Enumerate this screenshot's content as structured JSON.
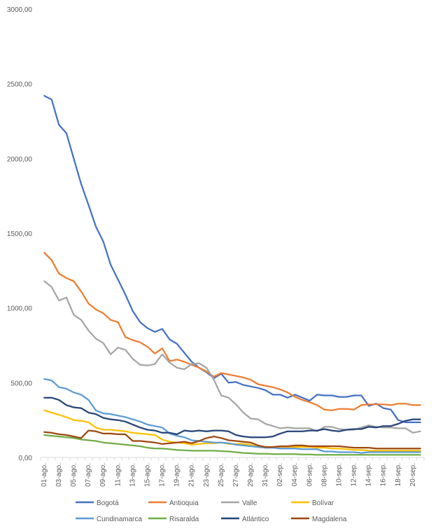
{
  "chart_data": {
    "type": "line",
    "title": "",
    "xlabel": "",
    "ylabel": "",
    "ylim": [
      0,
      3000
    ],
    "y_ticks": [
      "0,00",
      "500,00",
      "1000,00",
      "1500,00",
      "2000,00",
      "2500,00",
      "3000,00"
    ],
    "y_tick_values": [
      0,
      500,
      1000,
      1500,
      2000,
      2500,
      3000
    ],
    "grid": false,
    "legend_position": "bottom",
    "categories": [
      "01-ago.",
      "02-ago.",
      "03-ago.",
      "04-ago.",
      "05-ago.",
      "06-ago.",
      "07-ago.",
      "08-ago.",
      "09-ago.",
      "10-ago.",
      "11-ago.",
      "12-ago.",
      "13-ago.",
      "14-ago.",
      "15-ago.",
      "16-ago.",
      "17-ago.",
      "18-ago.",
      "19-ago.",
      "20-ago.",
      "21-ago.",
      "22-ago.",
      "23-ago.",
      "24-ago.",
      "25-ago.",
      "26-ago.",
      "27-ago.",
      "28-ago.",
      "29-ago.",
      "30-ago.",
      "31-ago.",
      "01-sep.",
      "02-sep.",
      "03-sep.",
      "04-sep.",
      "05-sep.",
      "06-sep.",
      "07-sep.",
      "08-sep.",
      "09-sep.",
      "10-sep.",
      "11-sep.",
      "12-sep.",
      "13-sep.",
      "14-sep.",
      "15-sep.",
      "16-sep.",
      "17-sep.",
      "18-sep.",
      "19-sep.",
      "20-sep.",
      "21-sep."
    ],
    "tick_labels": [
      "01-ago.",
      "03-ago.",
      "05-ago.",
      "07-ago.",
      "09-ago.",
      "11-ago.",
      "13-ago.",
      "15-ago.",
      "17-ago.",
      "19-ago.",
      "21-ago.",
      "23-ago.",
      "25-ago.",
      "27-ago.",
      "29-ago.",
      "31-ago.",
      "02-sep.",
      "04-sep.",
      "06-sep.",
      "08-sep.",
      "10-sep.",
      "12-sep.",
      "14-sep.",
      "16-sep.",
      "18-sep.",
      "20-sep."
    ],
    "series": [
      {
        "name": "Bogotá",
        "color": "#4472c4",
        "values": [
          2420,
          2395,
          2225,
          2170,
          2000,
          1830,
          1690,
          1545,
          1445,
          1290,
          1190,
          1090,
          980,
          905,
          865,
          840,
          860,
          790,
          760,
          700,
          640,
          600,
          570,
          530,
          560,
          500,
          505,
          485,
          475,
          465,
          450,
          420,
          420,
          400,
          420,
          400,
          380,
          420,
          415,
          415,
          405,
          405,
          415,
          415,
          345,
          360,
          330,
          320,
          250,
          235,
          235,
          235
        ]
      },
      {
        "name": "Antioquia",
        "color": "#ed7d31",
        "values": [
          1370,
          1320,
          1230,
          1200,
          1180,
          1110,
          1030,
          990,
          965,
          920,
          905,
          805,
          785,
          770,
          740,
          695,
          730,
          645,
          655,
          640,
          620,
          600,
          575,
          540,
          565,
          555,
          545,
          535,
          520,
          490,
          480,
          470,
          455,
          435,
          405,
          385,
          370,
          350,
          320,
          315,
          325,
          325,
          320,
          350,
          355,
          355,
          355,
          350,
          360,
          360,
          350,
          350
        ]
      },
      {
        "name": "Valle",
        "color": "#a5a5a5",
        "values": [
          1180,
          1140,
          1050,
          1070,
          955,
          920,
          850,
          795,
          765,
          690,
          735,
          720,
          660,
          620,
          615,
          625,
          690,
          635,
          600,
          590,
          625,
          630,
          600,
          520,
          415,
          400,
          355,
          300,
          260,
          255,
          225,
          210,
          195,
          200,
          195,
          195,
          195,
          175,
          205,
          205,
          190,
          185,
          185,
          200,
          215,
          205,
          200,
          200,
          195,
          195,
          165,
          175
        ]
      },
      {
        "name": "Bolívar",
        "color": "#ffc000",
        "values": [
          315,
          300,
          285,
          270,
          250,
          245,
          235,
          200,
          185,
          185,
          180,
          175,
          165,
          160,
          155,
          150,
          120,
          105,
          100,
          95,
          85,
          90,
          95,
          95,
          100,
          90,
          90,
          90,
          85,
          70,
          65,
          65,
          65,
          65,
          70,
          70,
          70,
          65,
          65,
          60,
          60,
          55,
          50,
          50,
          45,
          45,
          45,
          45,
          45,
          45,
          45,
          45
        ]
      },
      {
        "name": "Cundinamarca",
        "color": "#5b9bd5",
        "values": [
          525,
          515,
          470,
          460,
          435,
          420,
          385,
          315,
          295,
          290,
          280,
          270,
          255,
          240,
          220,
          210,
          200,
          160,
          145,
          135,
          115,
          110,
          105,
          100,
          100,
          95,
          85,
          80,
          75,
          70,
          65,
          65,
          60,
          60,
          60,
          55,
          55,
          55,
          40,
          40,
          35,
          35,
          35,
          30,
          35,
          35,
          35,
          35,
          35,
          35,
          35,
          35
        ]
      },
      {
        "name": "Risaralda",
        "color": "#70ad47",
        "values": [
          150,
          145,
          140,
          135,
          130,
          120,
          115,
          110,
          100,
          95,
          90,
          85,
          80,
          75,
          65,
          60,
          60,
          55,
          50,
          48,
          45,
          45,
          45,
          45,
          42,
          40,
          35,
          30,
          28,
          25,
          25,
          22,
          22,
          22,
          22,
          20,
          20,
          18,
          18,
          18,
          18,
          18,
          18,
          18,
          18,
          18,
          18,
          18,
          18,
          18,
          18,
          18
        ]
      },
      {
        "name": "Atlántico",
        "color": "#264478",
        "values": [
          400,
          400,
          385,
          350,
          335,
          330,
          300,
          290,
          265,
          255,
          250,
          240,
          220,
          200,
          185,
          180,
          165,
          165,
          155,
          180,
          175,
          180,
          175,
          180,
          180,
          175,
          150,
          140,
          135,
          135,
          135,
          140,
          160,
          175,
          175,
          175,
          180,
          180,
          190,
          180,
          175,
          185,
          190,
          190,
          205,
          200,
          210,
          210,
          225,
          245,
          255,
          255
        ]
      },
      {
        "name": "Magdalena",
        "color": "#9e480e",
        "values": [
          170,
          165,
          155,
          150,
          140,
          130,
          180,
          175,
          160,
          160,
          155,
          155,
          110,
          110,
          105,
          100,
          90,
          95,
          100,
          105,
          95,
          110,
          130,
          140,
          130,
          115,
          110,
          105,
          100,
          80,
          70,
          70,
          75,
          75,
          80,
          80,
          75,
          75,
          75,
          75,
          75,
          70,
          65,
          65,
          65,
          60,
          60,
          60,
          60,
          60,
          60,
          60
        ]
      }
    ]
  }
}
